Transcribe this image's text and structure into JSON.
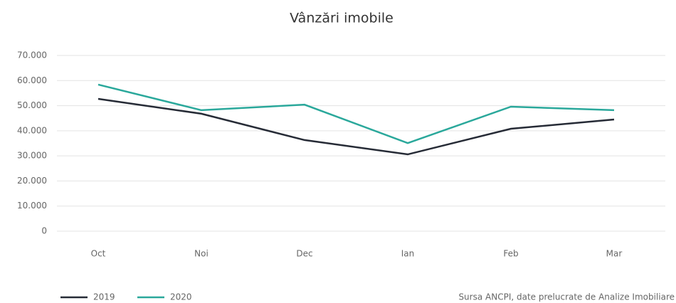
{
  "chart_data": {
    "type": "line",
    "title": "Vânzări imobile",
    "categories": [
      "Oct",
      "Noi",
      "Dec",
      "Ian",
      "Feb",
      "Mar"
    ],
    "series": [
      {
        "name": "2019",
        "color": "#262b36",
        "values": [
          52700,
          46800,
          36300,
          30600,
          40800,
          44500
        ]
      },
      {
        "name": "2020",
        "color": "#2aa89b",
        "values": [
          58400,
          48200,
          50400,
          35100,
          49600,
          48200
        ]
      }
    ],
    "ylim": [
      0,
      70000
    ],
    "yticks": [
      0,
      {
        "value": 10000,
        "label": "10.000"
      },
      {
        "value": 20000,
        "label": "20.000"
      },
      {
        "value": 30000,
        "label": "30.000"
      },
      {
        "value": 40000,
        "label": "40.000"
      },
      {
        "value": 50000,
        "label": "50.000"
      },
      {
        "value": 60000,
        "label": "60.000"
      },
      {
        "value": 70000,
        "label": "70.000"
      }
    ],
    "grid": true,
    "legend": "bottom-left",
    "source": "Sursa ANCPI, date prelucrate de Analize Imobiliare"
  }
}
